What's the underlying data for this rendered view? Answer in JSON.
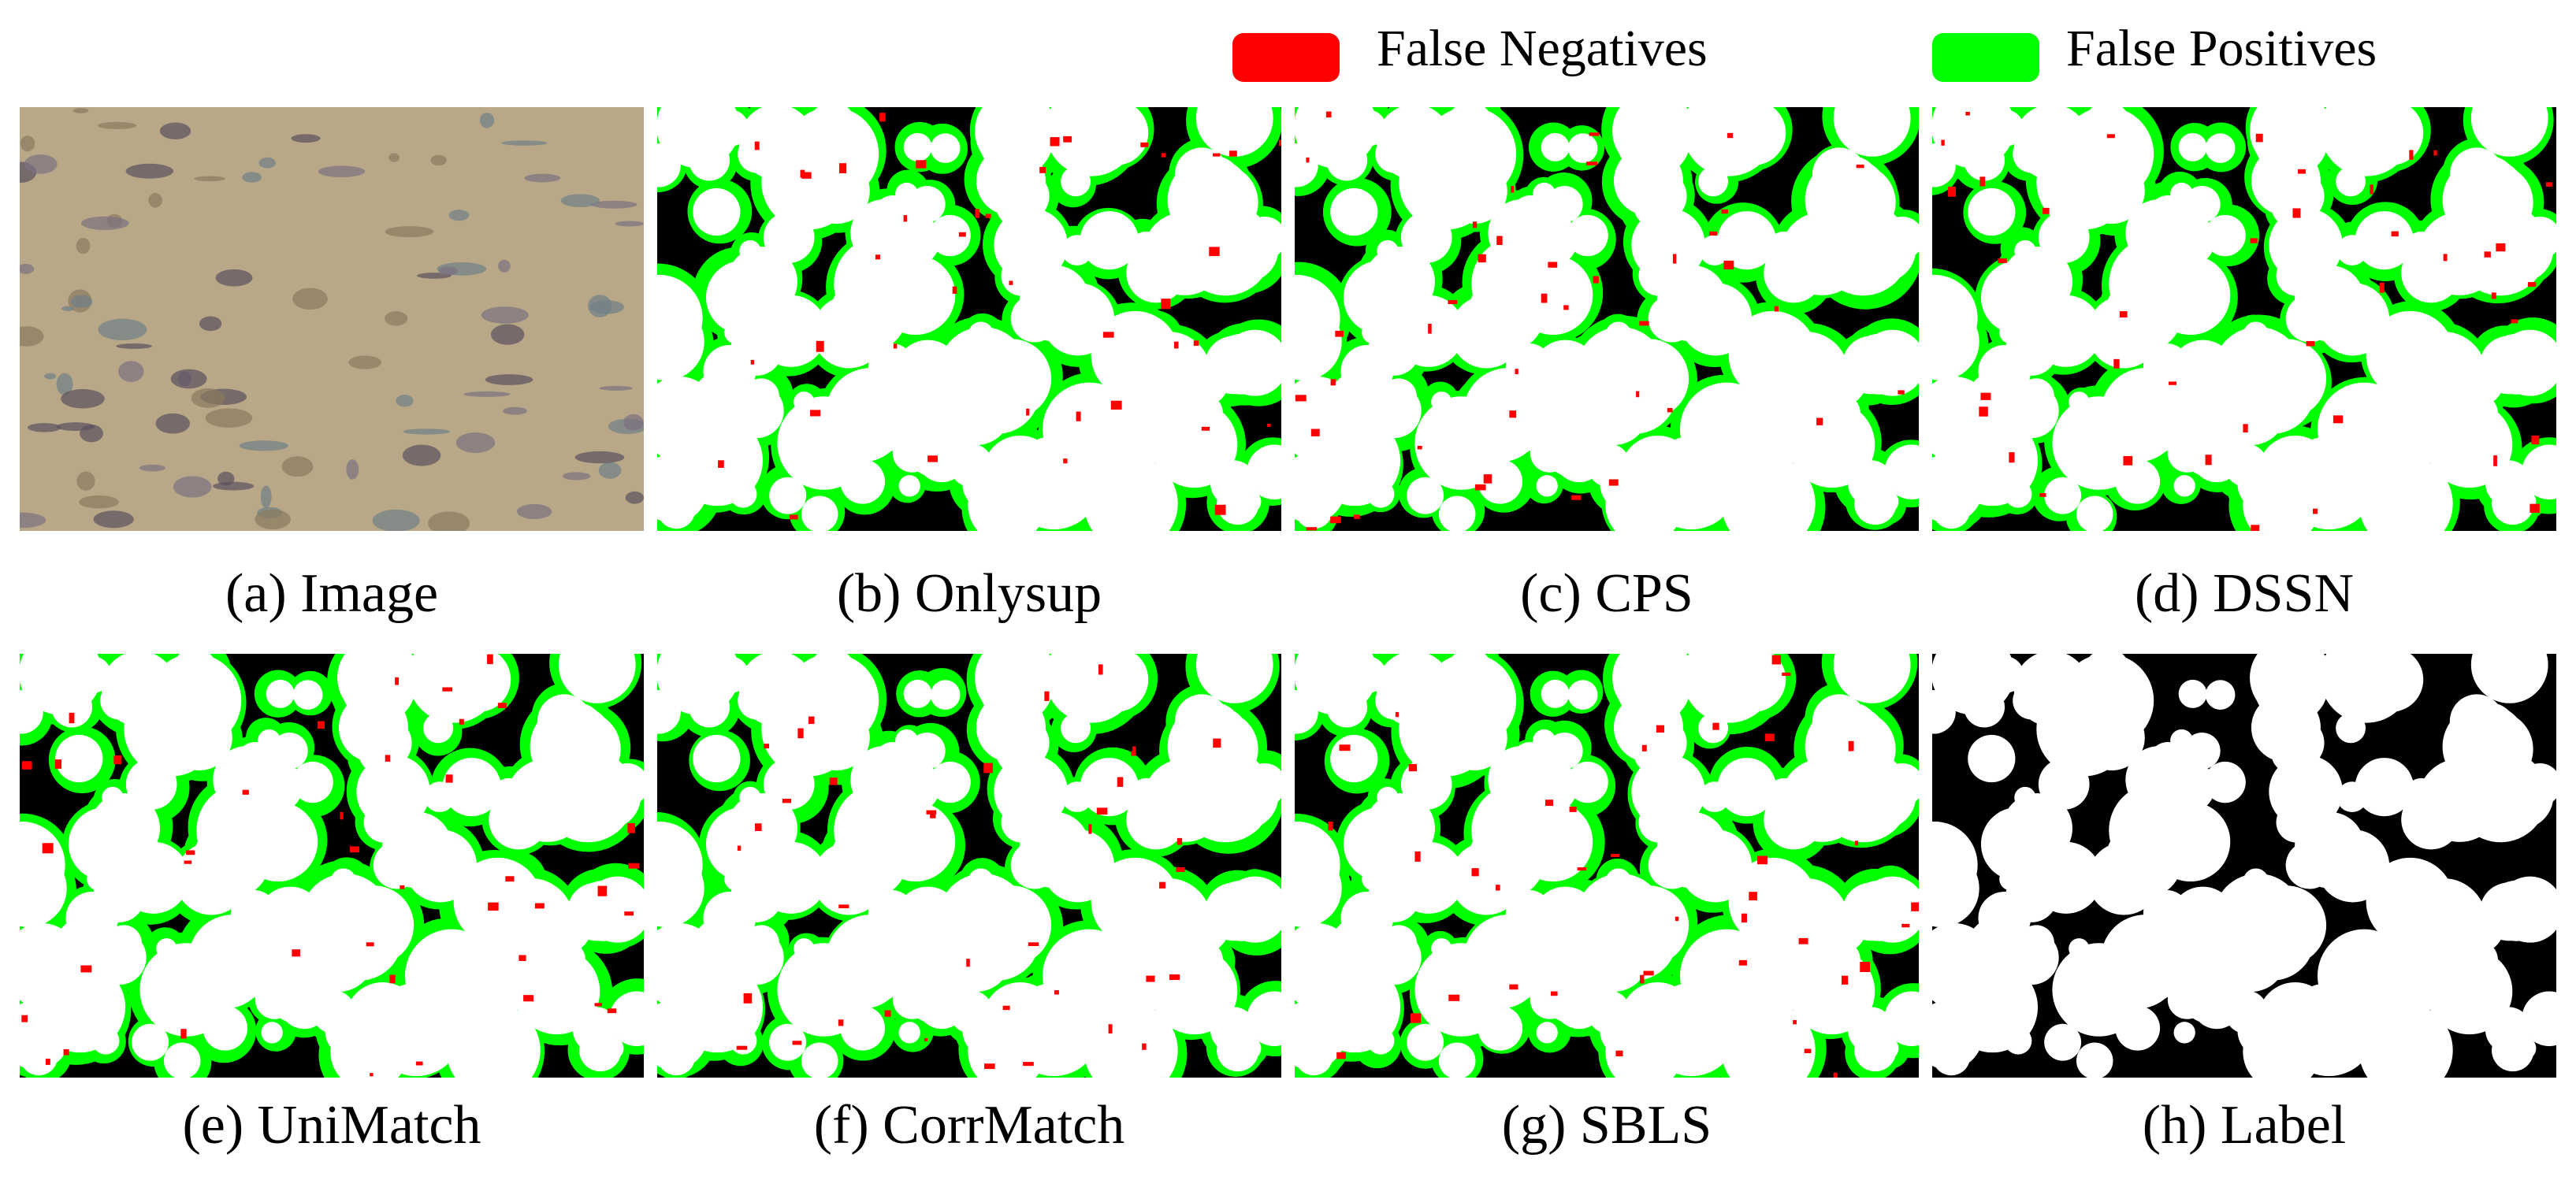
{
  "legend": [
    {
      "label": "False Negatives",
      "color": "#ff0000"
    },
    {
      "label": "False Positives",
      "color": "#00ff00"
    }
  ],
  "panels": [
    {
      "caption": "(a) Image"
    },
    {
      "caption": "(b) Onlysup"
    },
    {
      "caption": "(c) CPS"
    },
    {
      "caption": "(d) DSSN"
    },
    {
      "caption": "(e) UniMatch"
    },
    {
      "caption": "(f) CorrMatch"
    },
    {
      "caption": "(g) SBLS"
    },
    {
      "caption": "(h) Label"
    }
  ]
}
